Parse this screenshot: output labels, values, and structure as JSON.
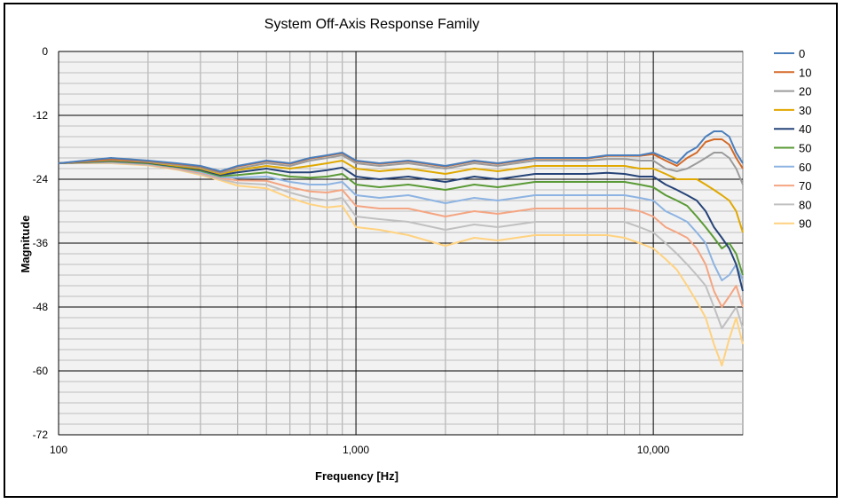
{
  "chart_data": {
    "type": "line",
    "title": "System Off-Axis Response Family",
    "xlabel": "Frequency [Hz]",
    "ylabel": "Magnitude",
    "x_scale": "log",
    "xlim": [
      100,
      20000
    ],
    "ylim": [
      -72,
      0
    ],
    "x_ticks": [
      {
        "value": 100,
        "label": "100"
      },
      {
        "value": 1000,
        "label": "1,000"
      },
      {
        "value": 10000,
        "label": "10,000"
      }
    ],
    "y_ticks": [
      {
        "value": 0,
        "label": "0"
      },
      {
        "value": -12,
        "label": "-12"
      },
      {
        "value": -24,
        "label": "-24"
      },
      {
        "value": -36,
        "label": "-36"
      },
      {
        "value": -48,
        "label": "-48"
      },
      {
        "value": -60,
        "label": "-60"
      },
      {
        "value": -72,
        "label": "-72"
      }
    ],
    "grid": true,
    "legend_position": "right",
    "x": [
      100,
      150,
      200,
      250,
      300,
      350,
      400,
      500,
      600,
      700,
      800,
      900,
      1000,
      1200,
      1500,
      2000,
      2500,
      3000,
      4000,
      5000,
      6000,
      7000,
      8000,
      9000,
      10000,
      11000,
      12000,
      13000,
      14000,
      15000,
      16000,
      17000,
      18000,
      19000,
      20000
    ],
    "series": [
      {
        "name": "0",
        "color": "#4a7ebb",
        "values": [
          -21,
          -20,
          -20.5,
          -21,
          -21.5,
          -22.5,
          -21.5,
          -20.5,
          -21,
          -20,
          -19.5,
          -19,
          -20.5,
          -21,
          -20.5,
          -21.5,
          -20.5,
          -21,
          -20,
          -20,
          -20,
          -19.5,
          -19.5,
          -19.5,
          -19,
          -20,
          -21,
          -19,
          -18,
          -16,
          -15,
          -15,
          -16,
          -19,
          -21
        ]
      },
      {
        "name": "10",
        "color": "#d46a28",
        "values": [
          -21,
          -20.2,
          -20.6,
          -21.1,
          -21.6,
          -22.6,
          -21.6,
          -20.6,
          -21.1,
          -20.1,
          -19.6,
          -19.1,
          -20.6,
          -21.1,
          -20.6,
          -21.6,
          -20.6,
          -21.1,
          -20.1,
          -20.1,
          -20.1,
          -19.6,
          -19.6,
          -19.6,
          -19.3,
          -20.5,
          -21.5,
          -20,
          -19,
          -17,
          -16.5,
          -16.5,
          -17.5,
          -20,
          -22
        ]
      },
      {
        "name": "20",
        "color": "#9b9b9b",
        "values": [
          -21,
          -20.3,
          -20.7,
          -21.3,
          -21.8,
          -22.8,
          -22,
          -21,
          -21.5,
          -20.5,
          -20,
          -19.5,
          -21,
          -21.5,
          -21,
          -22,
          -21,
          -21.5,
          -20.5,
          -20.5,
          -20.5,
          -20.2,
          -20.2,
          -20.5,
          -20.5,
          -22,
          -22.5,
          -22,
          -21,
          -20,
          -19,
          -19,
          -20,
          -22,
          -25
        ]
      },
      {
        "name": "30",
        "color": "#e0a800",
        "values": [
          -21,
          -20.4,
          -20.8,
          -21.5,
          -22,
          -23,
          -22.3,
          -21.5,
          -22,
          -21.5,
          -21,
          -20.5,
          -22,
          -22.5,
          -22,
          -23,
          -22,
          -22.5,
          -21.5,
          -21.5,
          -21.5,
          -21.5,
          -21.5,
          -22,
          -22,
          -23,
          -24,
          -24,
          -24,
          -25,
          -26,
          -27,
          -28,
          -30,
          -34
        ]
      },
      {
        "name": "40",
        "color": "#264478",
        "values": [
          -21,
          -20.5,
          -20.9,
          -21.6,
          -22.2,
          -23.2,
          -22.7,
          -22,
          -22.7,
          -22.7,
          -22.3,
          -21.8,
          -23.5,
          -24,
          -23.5,
          -24.5,
          -23.5,
          -24,
          -23,
          -23,
          -23,
          -22.8,
          -23,
          -23.5,
          -23.5,
          -25,
          -26,
          -27,
          -28,
          -30,
          -33,
          -35,
          -37,
          -40,
          -45
        ]
      },
      {
        "name": "50",
        "color": "#5a9a36",
        "values": [
          -21,
          -20.6,
          -21,
          -21.7,
          -22.4,
          -23.4,
          -23.2,
          -22.7,
          -23.5,
          -23.7,
          -23.5,
          -23,
          -25,
          -25.5,
          -25,
          -26,
          -25,
          -25.5,
          -24.5,
          -24.5,
          -24.5,
          -24.5,
          -24.5,
          -25,
          -25.5,
          -27,
          -28,
          -29,
          -31,
          -33,
          -35,
          -37,
          -36,
          -38,
          -42
        ]
      },
      {
        "name": "60",
        "color": "#8db3e2",
        "values": [
          -21,
          -20.7,
          -21.1,
          -21.8,
          -22.6,
          -23.6,
          -23.7,
          -23.5,
          -24.5,
          -25,
          -25,
          -24.5,
          -27,
          -27.5,
          -27,
          -28.5,
          -27.5,
          -28,
          -27,
          -27,
          -27,
          -27,
          -27,
          -27.5,
          -28,
          -30,
          -31,
          -32,
          -34,
          -36,
          -40,
          -43,
          -42,
          -40,
          -43
        ]
      },
      {
        "name": "70",
        "color": "#f4a582",
        "values": [
          -21,
          -20.8,
          -21.2,
          -22,
          -22.8,
          -23.8,
          -24.2,
          -24.3,
          -25.5,
          -26.3,
          -26.5,
          -26,
          -29,
          -29.5,
          -29.5,
          -31,
          -30,
          -30.5,
          -29.5,
          -29.5,
          -29.5,
          -29.5,
          -29.5,
          -30,
          -31,
          -33,
          -34,
          -35,
          -37,
          -40,
          -45,
          -48,
          -46,
          -44,
          -48
        ]
      },
      {
        "name": "80",
        "color": "#c0c0c0",
        "values": [
          -21,
          -20.9,
          -21.3,
          -22.1,
          -23,
          -24,
          -24.7,
          -25,
          -26.5,
          -27.5,
          -28,
          -27.5,
          -31,
          -31.5,
          -32,
          -33.5,
          -32.5,
          -33,
          -32,
          -32,
          -32,
          -32,
          -32,
          -33,
          -34,
          -36,
          -38,
          -40,
          -42,
          -44,
          -48,
          -52,
          -50,
          -48,
          -52
        ]
      },
      {
        "name": "90",
        "color": "#ffd280",
        "values": [
          -21,
          -21,
          -21.4,
          -22.2,
          -23.2,
          -24.2,
          -25.2,
          -25.7,
          -27.5,
          -28.7,
          -29.3,
          -29,
          -33,
          -33.5,
          -34.5,
          -36.5,
          -35,
          -35.5,
          -34.5,
          -34.5,
          -34.5,
          -34.5,
          -35,
          -36,
          -37,
          -39,
          -41,
          -44,
          -47,
          -50,
          -55,
          -59,
          -54,
          -50,
          -55
        ]
      }
    ]
  }
}
